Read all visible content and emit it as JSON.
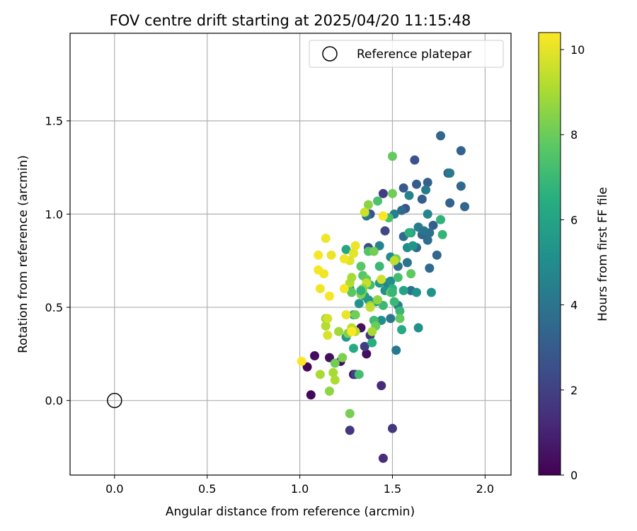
{
  "chart_data": {
    "type": "scatter",
    "title": "FOV centre drift starting at 2025/04/20 11:15:48",
    "xlabel": "Angular distance from reference (arcmin)",
    "ylabel": "Rotation from reference (arcmin)",
    "xlim": [
      -0.24,
      2.14
    ],
    "ylim": [
      -0.4,
      1.97
    ],
    "xticks": [
      0.0,
      0.5,
      1.0,
      1.5,
      2.0
    ],
    "xtick_labels": [
      "0.0",
      "0.5",
      "1.0",
      "1.5",
      "2.0"
    ],
    "yticks": [
      0.0,
      0.5,
      1.0,
      1.5
    ],
    "ytick_labels": [
      "0.0",
      "0.5",
      "1.0",
      "1.5"
    ],
    "grid": true,
    "legend": {
      "placement": "top-right",
      "entries": [
        "Reference platepar"
      ]
    },
    "reference_point": {
      "x": 0.0,
      "y": 0.0
    },
    "colorbar": {
      "label": "Hours from first FF file",
      "min": 0,
      "max": 10.4,
      "ticks": [
        0,
        2,
        4,
        6,
        8,
        10
      ],
      "tick_labels": [
        "0",
        "2",
        "4",
        "6",
        "8",
        "10"
      ],
      "colormap": "viridis"
    },
    "points": [
      {
        "x": 1.04,
        "y": 0.18,
        "c": 0.1
      },
      {
        "x": 1.06,
        "y": 0.03,
        "c": 0.2
      },
      {
        "x": 1.08,
        "y": 0.24,
        "c": 0.3
      },
      {
        "x": 1.16,
        "y": 0.23,
        "c": 0.4
      },
      {
        "x": 1.22,
        "y": 0.21,
        "c": 0.3
      },
      {
        "x": 1.29,
        "y": 0.14,
        "c": 0.6
      },
      {
        "x": 1.33,
        "y": 0.39,
        "c": 0.5
      },
      {
        "x": 1.36,
        "y": 0.25,
        "c": 0.4
      },
      {
        "x": 1.45,
        "y": -0.31,
        "c": 1.3
      },
      {
        "x": 1.44,
        "y": 0.08,
        "c": 1.2
      },
      {
        "x": 1.5,
        "y": -0.15,
        "c": 1.6
      },
      {
        "x": 1.27,
        "y": -0.16,
        "c": 1.7
      },
      {
        "x": 1.38,
        "y": 0.35,
        "c": 1.5
      },
      {
        "x": 1.35,
        "y": 0.29,
        "c": 1.8
      },
      {
        "x": 1.3,
        "y": 0.14,
        "c": 1.9
      },
      {
        "x": 1.45,
        "y": 1.11,
        "c": 1.9
      },
      {
        "x": 1.46,
        "y": 0.91,
        "c": 2.2
      },
      {
        "x": 1.37,
        "y": 0.82,
        "c": 2.4
      },
      {
        "x": 1.38,
        "y": 1.0,
        "c": 2.6
      },
      {
        "x": 1.62,
        "y": 1.29,
        "c": 2.6
      },
      {
        "x": 1.56,
        "y": 1.14,
        "c": 2.9
      },
      {
        "x": 1.66,
        "y": 1.08,
        "c": 3.1
      },
      {
        "x": 1.57,
        "y": 1.03,
        "c": 2.7
      },
      {
        "x": 1.63,
        "y": 1.16,
        "c": 3.0
      },
      {
        "x": 1.69,
        "y": 1.17,
        "c": 3.2
      },
      {
        "x": 1.76,
        "y": 1.42,
        "c": 3.4
      },
      {
        "x": 1.87,
        "y": 1.34,
        "c": 3.3
      },
      {
        "x": 1.8,
        "y": 1.22,
        "c": 3.0
      },
      {
        "x": 1.87,
        "y": 1.15,
        "c": 3.5
      },
      {
        "x": 1.89,
        "y": 1.04,
        "c": 3.4
      },
      {
        "x": 1.81,
        "y": 1.06,
        "c": 3.3
      },
      {
        "x": 1.72,
        "y": 0.94,
        "c": 3.2
      },
      {
        "x": 1.74,
        "y": 0.78,
        "c": 3.4
      },
      {
        "x": 1.7,
        "y": 0.71,
        "c": 3.6
      },
      {
        "x": 1.69,
        "y": 0.86,
        "c": 3.7
      },
      {
        "x": 1.63,
        "y": 0.82,
        "c": 3.5
      },
      {
        "x": 1.6,
        "y": 0.59,
        "c": 3.8
      },
      {
        "x": 1.56,
        "y": 0.88,
        "c": 3.6
      },
      {
        "x": 1.64,
        "y": 0.93,
        "c": 3.9
      },
      {
        "x": 1.58,
        "y": 0.74,
        "c": 4.0
      },
      {
        "x": 1.53,
        "y": 0.72,
        "c": 3.8
      },
      {
        "x": 1.66,
        "y": 0.89,
        "c": 3.4
      },
      {
        "x": 1.7,
        "y": 0.9,
        "c": 3.8
      },
      {
        "x": 1.55,
        "y": 1.02,
        "c": 3.6
      },
      {
        "x": 1.81,
        "y": 1.22,
        "c": 4.2
      },
      {
        "x": 1.68,
        "y": 1.13,
        "c": 4.2
      },
      {
        "x": 1.51,
        "y": 1.0,
        "c": 4.4
      },
      {
        "x": 1.59,
        "y": 1.1,
        "c": 4.6
      },
      {
        "x": 1.64,
        "y": 0.93,
        "c": 4.3
      },
      {
        "x": 1.67,
        "y": 0.91,
        "c": 4.0
      },
      {
        "x": 1.69,
        "y": 1.0,
        "c": 4.7
      },
      {
        "x": 1.49,
        "y": 0.44,
        "c": 4.1
      },
      {
        "x": 1.52,
        "y": 0.27,
        "c": 4.2
      },
      {
        "x": 1.53,
        "y": 0.51,
        "c": 4.4
      },
      {
        "x": 1.36,
        "y": 0.99,
        "c": 4.2
      },
      {
        "x": 1.43,
        "y": 0.83,
        "c": 4.6
      },
      {
        "x": 1.49,
        "y": 0.77,
        "c": 4.9
      },
      {
        "x": 1.47,
        "y": 0.63,
        "c": 4.5
      },
      {
        "x": 1.58,
        "y": 0.82,
        "c": 5.0
      },
      {
        "x": 1.61,
        "y": 0.83,
        "c": 5.4
      },
      {
        "x": 1.6,
        "y": 0.9,
        "c": 5.6
      },
      {
        "x": 1.63,
        "y": 0.58,
        "c": 5.3
      },
      {
        "x": 1.71,
        "y": 0.58,
        "c": 5.3
      },
      {
        "x": 1.64,
        "y": 0.39,
        "c": 5.2
      },
      {
        "x": 1.49,
        "y": 0.64,
        "c": 5.1
      },
      {
        "x": 1.46,
        "y": 0.59,
        "c": 5.2
      },
      {
        "x": 1.43,
        "y": 0.63,
        "c": 5.5
      },
      {
        "x": 1.41,
        "y": 0.53,
        "c": 5.5
      },
      {
        "x": 1.44,
        "y": 0.43,
        "c": 5.1
      },
      {
        "x": 1.37,
        "y": 0.54,
        "c": 5.4
      },
      {
        "x": 1.35,
        "y": 0.56,
        "c": 5.7
      },
      {
        "x": 1.32,
        "y": 0.52,
        "c": 5.3
      },
      {
        "x": 1.29,
        "y": 0.46,
        "c": 5.8
      },
      {
        "x": 1.25,
        "y": 0.34,
        "c": 5.6
      },
      {
        "x": 1.27,
        "y": 0.6,
        "c": 6.0
      },
      {
        "x": 1.25,
        "y": 0.81,
        "c": 6.2
      },
      {
        "x": 1.29,
        "y": 0.28,
        "c": 6.3
      },
      {
        "x": 1.39,
        "y": 0.31,
        "c": 6.5
      },
      {
        "x": 1.55,
        "y": 0.38,
        "c": 6.3
      },
      {
        "x": 1.56,
        "y": 0.59,
        "c": 6.0
      },
      {
        "x": 1.59,
        "y": 0.9,
        "c": 6.6
      },
      {
        "x": 1.76,
        "y": 0.97,
        "c": 6.7
      },
      {
        "x": 1.77,
        "y": 0.89,
        "c": 6.8
      },
      {
        "x": 1.5,
        "y": 0.6,
        "c": 6.6
      },
      {
        "x": 1.54,
        "y": 0.48,
        "c": 6.9
      },
      {
        "x": 1.51,
        "y": 0.53,
        "c": 7.0
      },
      {
        "x": 1.45,
        "y": 0.51,
        "c": 7.0
      },
      {
        "x": 1.53,
        "y": 0.66,
        "c": 7.2
      },
      {
        "x": 1.43,
        "y": 0.72,
        "c": 7.0
      },
      {
        "x": 1.4,
        "y": 0.43,
        "c": 7.1
      },
      {
        "x": 1.32,
        "y": 0.14,
        "c": 7.2
      },
      {
        "x": 1.48,
        "y": 0.98,
        "c": 7.3
      },
      {
        "x": 1.42,
        "y": 1.07,
        "c": 7.4
      },
      {
        "x": 1.38,
        "y": 0.62,
        "c": 7.2
      },
      {
        "x": 1.37,
        "y": 0.8,
        "c": 7.5
      },
      {
        "x": 1.34,
        "y": 0.67,
        "c": 7.6
      },
      {
        "x": 1.33,
        "y": 0.72,
        "c": 7.7
      },
      {
        "x": 1.29,
        "y": 0.79,
        "c": 7.6
      },
      {
        "x": 1.28,
        "y": 0.58,
        "c": 7.7
      },
      {
        "x": 1.5,
        "y": 1.31,
        "c": 7.9
      },
      {
        "x": 1.5,
        "y": 1.11,
        "c": 8.1
      },
      {
        "x": 1.49,
        "y": 0.58,
        "c": 7.9
      },
      {
        "x": 1.54,
        "y": 0.44,
        "c": 7.9
      },
      {
        "x": 1.6,
        "y": 0.68,
        "c": 7.8
      },
      {
        "x": 1.52,
        "y": 0.76,
        "c": 8.2
      },
      {
        "x": 1.4,
        "y": 0.8,
        "c": 8.1
      },
      {
        "x": 1.41,
        "y": 0.4,
        "c": 8.0
      },
      {
        "x": 1.36,
        "y": 0.65,
        "c": 7.9
      },
      {
        "x": 1.34,
        "y": 0.59,
        "c": 8.1
      },
      {
        "x": 1.3,
        "y": 0.46,
        "c": 8.1
      },
      {
        "x": 1.27,
        "y": -0.07,
        "c": 8.2
      },
      {
        "x": 1.37,
        "y": 1.05,
        "c": 8.5
      },
      {
        "x": 1.19,
        "y": 0.2,
        "c": 8.1
      },
      {
        "x": 1.23,
        "y": 0.23,
        "c": 8.3
      },
      {
        "x": 1.16,
        "y": 0.05,
        "c": 8.6
      },
      {
        "x": 1.33,
        "y": 0.57,
        "c": 8.4
      },
      {
        "x": 1.38,
        "y": 0.51,
        "c": 8.4
      },
      {
        "x": 1.42,
        "y": 0.54,
        "c": 8.6
      },
      {
        "x": 1.26,
        "y": 0.36,
        "c": 8.4
      },
      {
        "x": 1.14,
        "y": 0.44,
        "c": 8.8
      },
      {
        "x": 1.11,
        "y": 0.14,
        "c": 9.0
      },
      {
        "x": 1.18,
        "y": 0.15,
        "c": 9.0
      },
      {
        "x": 1.19,
        "y": 0.11,
        "c": 9.1
      },
      {
        "x": 1.14,
        "y": 0.4,
        "c": 9.2
      },
      {
        "x": 1.21,
        "y": 0.37,
        "c": 8.9
      },
      {
        "x": 1.28,
        "y": 0.39,
        "c": 9.3
      },
      {
        "x": 1.3,
        "y": 0.37,
        "c": 9.3
      },
      {
        "x": 1.27,
        "y": 0.63,
        "c": 9.2
      },
      {
        "x": 1.28,
        "y": 0.66,
        "c": 9.0
      },
      {
        "x": 1.38,
        "y": 0.5,
        "c": 9.4
      },
      {
        "x": 1.36,
        "y": 0.63,
        "c": 9.5
      },
      {
        "x": 1.44,
        "y": 0.65,
        "c": 9.6
      },
      {
        "x": 1.51,
        "y": 0.75,
        "c": 9.4
      },
      {
        "x": 1.35,
        "y": 1.01,
        "c": 9.6
      },
      {
        "x": 1.15,
        "y": 0.44,
        "c": 9.7
      },
      {
        "x": 1.15,
        "y": 0.35,
        "c": 9.8
      },
      {
        "x": 1.27,
        "y": 0.75,
        "c": 9.9
      },
      {
        "x": 1.29,
        "y": 0.79,
        "c": 10.0
      },
      {
        "x": 1.3,
        "y": 0.83,
        "c": 10.1
      },
      {
        "x": 1.24,
        "y": 0.76,
        "c": 10.2
      },
      {
        "x": 1.14,
        "y": 0.87,
        "c": 10.2
      },
      {
        "x": 1.17,
        "y": 0.78,
        "c": 10.1
      },
      {
        "x": 1.1,
        "y": 0.78,
        "c": 10.3
      },
      {
        "x": 1.1,
        "y": 0.7,
        "c": 10.3
      },
      {
        "x": 1.13,
        "y": 0.68,
        "c": 10.2
      },
      {
        "x": 1.11,
        "y": 0.6,
        "c": 10.2
      },
      {
        "x": 1.16,
        "y": 0.56,
        "c": 10.3
      },
      {
        "x": 1.24,
        "y": 0.6,
        "c": 10.3
      },
      {
        "x": 1.25,
        "y": 0.46,
        "c": 10.1
      },
      {
        "x": 1.28,
        "y": 0.37,
        "c": 10.4
      },
      {
        "x": 1.01,
        "y": 0.21,
        "c": 10.4
      },
      {
        "x": 1.45,
        "y": 0.99,
        "c": 10.4
      },
      {
        "x": 1.34,
        "y": 0.6,
        "c": 8.6
      },
      {
        "x": 1.5,
        "y": 0.58,
        "c": 6.9
      },
      {
        "x": 1.33,
        "y": 0.59,
        "c": 6.7
      },
      {
        "x": 1.39,
        "y": 0.37,
        "c": 9.0
      }
    ]
  }
}
